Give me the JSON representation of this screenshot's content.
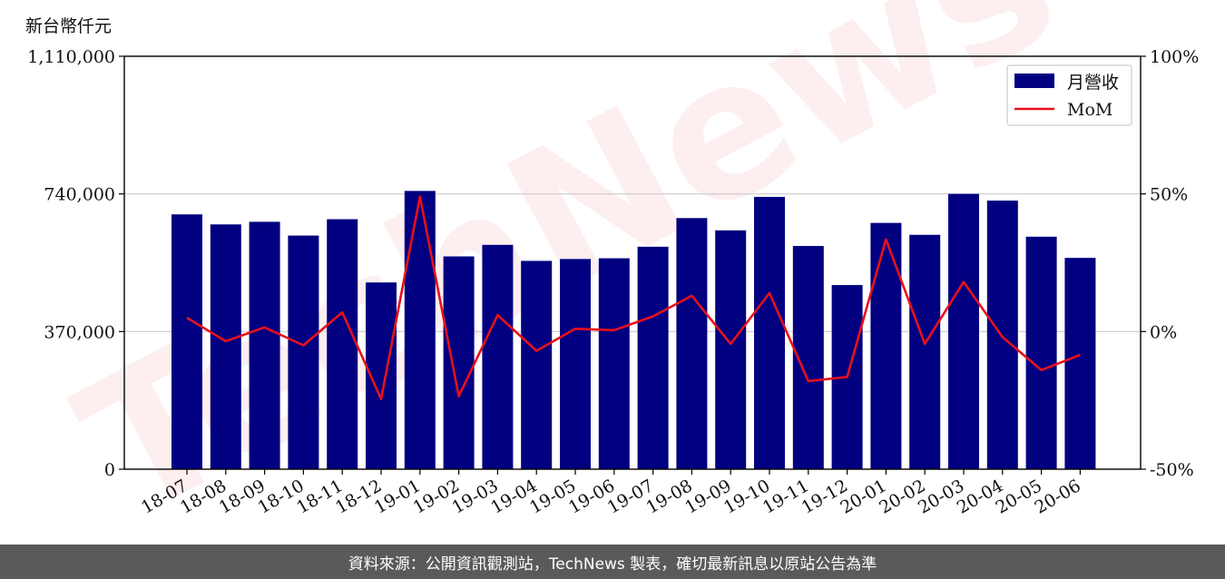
{
  "unit_label": "新台幣仟元",
  "footer_text": "資料來源：公開資訊觀測站，TechNews 製表，確切最新訊息以原站公告為準",
  "watermark_text": "TechNews",
  "colors": {
    "bar": "#000080",
    "line": "#e8101a",
    "grid": "#cccccc",
    "footer_bg": "#5a5a5a"
  },
  "chart_data": {
    "type": "bar",
    "categories": [
      "18-07",
      "18-08",
      "18-09",
      "18-10",
      "18-11",
      "18-12",
      "19-01",
      "19-02",
      "19-03",
      "19-04",
      "19-05",
      "19-06",
      "19-07",
      "19-08",
      "19-09",
      "19-10",
      "19-11",
      "19-12",
      "20-01",
      "20-02",
      "20-03",
      "20-04",
      "20-05",
      "20-06"
    ],
    "series": [
      {
        "name": "月營收",
        "type": "bar",
        "axis": "left",
        "values": [
          685000,
          658000,
          665000,
          628000,
          672000,
          502000,
          748000,
          572000,
          603000,
          560000,
          565000,
          567000,
          598000,
          675000,
          642000,
          732000,
          600000,
          495000,
          662000,
          630000,
          740000,
          722000,
          625000,
          568000
        ]
      },
      {
        "name": "MoM",
        "type": "line",
        "axis": "right",
        "values": [
          5,
          -3.5,
          1.5,
          -5,
          7,
          -24.5,
          49,
          -23.5,
          6,
          -7,
          1,
          0.5,
          5.5,
          13,
          -4.5,
          14,
          -18,
          -16.5,
          33.5,
          -4.5,
          18,
          -2,
          -14,
          -8.5
        ]
      }
    ],
    "y_left": {
      "lim": [
        0,
        1110000
      ],
      "ticks": [
        0,
        370000,
        740000,
        1110000
      ],
      "tick_labels": [
        "0",
        "370,000",
        "740,000",
        "1,110,000"
      ]
    },
    "y_right": {
      "lim": [
        -50,
        100
      ],
      "ticks": [
        -50,
        0,
        50,
        100
      ],
      "tick_labels": [
        "-50%",
        "0%",
        "50%",
        "100%"
      ]
    },
    "grid": true,
    "legend": "top-right"
  }
}
